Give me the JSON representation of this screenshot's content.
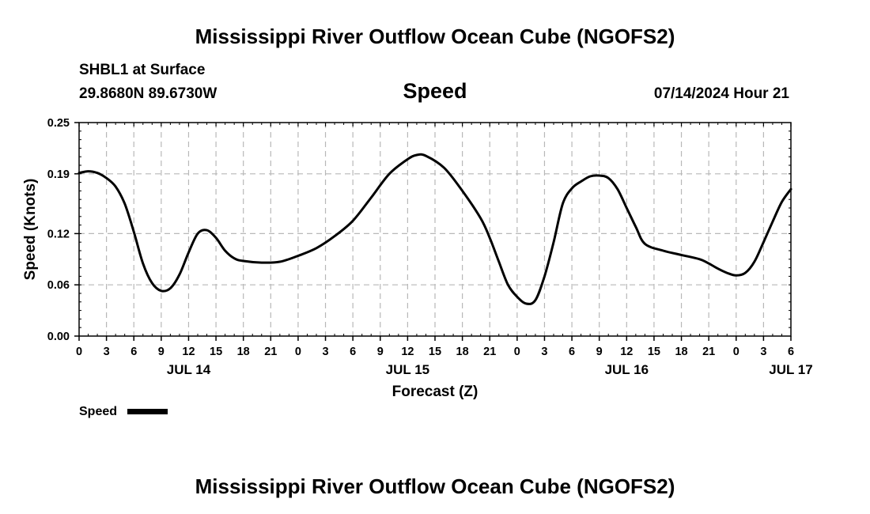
{
  "header": {
    "title": "Mississippi River Outflow Ocean Cube (NGOFS2)",
    "station": "SHBL1 at Surface",
    "coords": "29.8680N  89.6730W",
    "variable": "Speed",
    "datetime": "07/14/2024 Hour 21"
  },
  "footer": {
    "title": "Mississippi River Outflow Ocean Cube (NGOFS2)"
  },
  "legend": {
    "label": "Speed"
  },
  "colors": {
    "line": "#000000",
    "grid": "#b8b8b8",
    "frame": "#000000"
  },
  "chart_data": {
    "type": "line",
    "title": "Speed",
    "xlabel": "Forecast (Z)",
    "ylabel": "Speed (Knots)",
    "x_unit": "hours since 2024-07-14 00Z",
    "xlim": [
      0,
      78
    ],
    "ylim": [
      0,
      0.25
    ],
    "grid": true,
    "legend_position": "below-left",
    "x_ticks": [
      0,
      3,
      6,
      9,
      12,
      15,
      18,
      21,
      24,
      27,
      30,
      33,
      36,
      39,
      42,
      45,
      48,
      51,
      54,
      57,
      60,
      63,
      66,
      69,
      72,
      75,
      78
    ],
    "x_tick_labels": [
      "0",
      "3",
      "6",
      "9",
      "12",
      "15",
      "18",
      "21",
      "0",
      "3",
      "6",
      "9",
      "12",
      "15",
      "18",
      "21",
      "0",
      "3",
      "6",
      "9",
      "12",
      "15",
      "18",
      "21",
      "0",
      "3",
      "6"
    ],
    "day_labels": [
      {
        "x": 12,
        "label": "JUL 14"
      },
      {
        "x": 36,
        "label": "JUL 15"
      },
      {
        "x": 60,
        "label": "JUL 16"
      },
      {
        "x": 78,
        "label": "JUL 17"
      }
    ],
    "y_ticks": [
      0.0,
      0.06,
      0.12,
      0.19,
      0.25
    ],
    "y_tick_labels": [
      "0.00",
      "0.06",
      "0.12",
      "0.19",
      "0.25"
    ],
    "series": [
      {
        "name": "Speed",
        "x": [
          0,
          1,
          2,
          3,
          4,
          5,
          6,
          7,
          8,
          9,
          10,
          11,
          12,
          13,
          14,
          15,
          16,
          17,
          18,
          20,
          22,
          24,
          26,
          28,
          30,
          32,
          34,
          36,
          37,
          38,
          40,
          42,
          44,
          45,
          46,
          47,
          48,
          49,
          50,
          51,
          52,
          53,
          54,
          55,
          56,
          57,
          58,
          59,
          60,
          61,
          62,
          64,
          66,
          68,
          69,
          70,
          71,
          72,
          73,
          74,
          75,
          76,
          77,
          78
        ],
        "values": [
          0.191,
          0.193,
          0.191,
          0.185,
          0.175,
          0.155,
          0.122,
          0.085,
          0.062,
          0.053,
          0.056,
          0.072,
          0.098,
          0.12,
          0.124,
          0.115,
          0.1,
          0.091,
          0.088,
          0.086,
          0.087,
          0.094,
          0.103,
          0.117,
          0.135,
          0.162,
          0.19,
          0.207,
          0.212,
          0.211,
          0.197,
          0.17,
          0.138,
          0.115,
          0.087,
          0.06,
          0.046,
          0.038,
          0.042,
          0.07,
          0.11,
          0.155,
          0.173,
          0.181,
          0.187,
          0.188,
          0.185,
          0.172,
          0.15,
          0.128,
          0.108,
          0.1,
          0.095,
          0.09,
          0.085,
          0.079,
          0.074,
          0.071,
          0.074,
          0.087,
          0.11,
          0.134,
          0.157,
          0.172
        ]
      }
    ]
  }
}
